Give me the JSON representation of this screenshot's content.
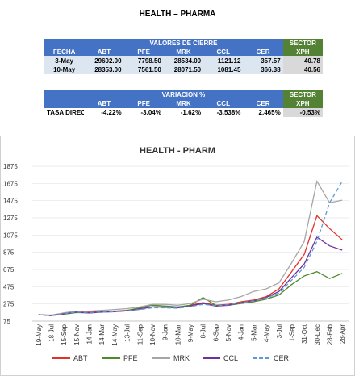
{
  "header": {
    "title": "HEALTH – PHARMA"
  },
  "table1": {
    "group": "VALORES DE CIERRE",
    "sector": "SECTOR",
    "columns": [
      "FECHA",
      "ABT",
      "PFE",
      "MRK",
      "CCL",
      "CER",
      "XPH"
    ],
    "rows": [
      [
        "3-May",
        "29602.00",
        "7798.50",
        "28534.00",
        "1121.12",
        "357.57",
        "40.78"
      ],
      [
        "10-May",
        "28353.00",
        "7561.50",
        "28071.50",
        "1081.45",
        "366.38",
        "40.56"
      ]
    ]
  },
  "table2": {
    "group": "VARIACION %",
    "sector": "SECTOR",
    "columns": [
      "ABT",
      "PFE",
      "MRK",
      "CCL",
      "CER",
      "XPH"
    ],
    "rows": [
      [
        "TASA DIREC.",
        "-4.22%",
        "-3.04%",
        "-1.62%",
        "-3.538%",
        "2.465%",
        "-0.53%"
      ]
    ]
  },
  "chart_data": {
    "type": "line",
    "title": "HEALTH - PHARM",
    "categories": [
      "19-May",
      "18-Jul",
      "15-Sep",
      "15-Nov",
      "14-Jan",
      "14-Mar",
      "14-May",
      "13-Jul",
      "11-Sep",
      "10-Nov",
      "9-Jan",
      "10-Mar",
      "9-May",
      "8-Jul",
      "6-Sep",
      "5-Nov",
      "4-Jan",
      "5-Mar",
      "4-May",
      "3-Jul",
      "1-Sep",
      "31-Oct",
      "30-Dec",
      "28-Feb",
      "28-Apr"
    ],
    "series": [
      {
        "name": "ABT",
        "color": "#e0312b",
        "values": [
          150,
          140,
          170,
          190,
          180,
          185,
          190,
          200,
          220,
          240,
          240,
          230,
          260,
          290,
          260,
          270,
          300,
          320,
          360,
          450,
          650,
          850,
          1300,
          1150,
          1020
        ]
      },
      {
        "name": "PFE",
        "color": "#4e8a2a",
        "values": [
          150,
          140,
          155,
          175,
          170,
          180,
          185,
          200,
          230,
          260,
          250,
          240,
          260,
          350,
          260,
          260,
          280,
          300,
          330,
          380,
          500,
          600,
          650,
          570,
          630
        ]
      },
      {
        "name": "MRK",
        "color": "#a6a6a6",
        "values": [
          150,
          145,
          170,
          190,
          190,
          200,
          210,
          220,
          240,
          270,
          270,
          260,
          280,
          330,
          300,
          320,
          360,
          420,
          450,
          520,
          750,
          1000,
          1700,
          1450,
          1480
        ]
      },
      {
        "name": "CCL",
        "color": "#7030a0",
        "values": [
          150,
          140,
          160,
          180,
          170,
          180,
          185,
          195,
          215,
          240,
          235,
          230,
          250,
          280,
          250,
          260,
          290,
          310,
          350,
          420,
          580,
          740,
          1050,
          950,
          900
        ]
      },
      {
        "name": "CER",
        "color": "#5b9bd5",
        "dashed": true,
        "values": [
          150,
          140,
          160,
          180,
          175,
          180,
          185,
          195,
          210,
          230,
          230,
          225,
          245,
          270,
          255,
          265,
          290,
          310,
          345,
          400,
          550,
          700,
          1000,
          1450,
          1700
        ]
      }
    ],
    "ylim": [
      75,
      1875
    ],
    "yticks": [
      75,
      275,
      475,
      675,
      875,
      1075,
      1275,
      1475,
      1675,
      1875
    ],
    "grid": true
  }
}
